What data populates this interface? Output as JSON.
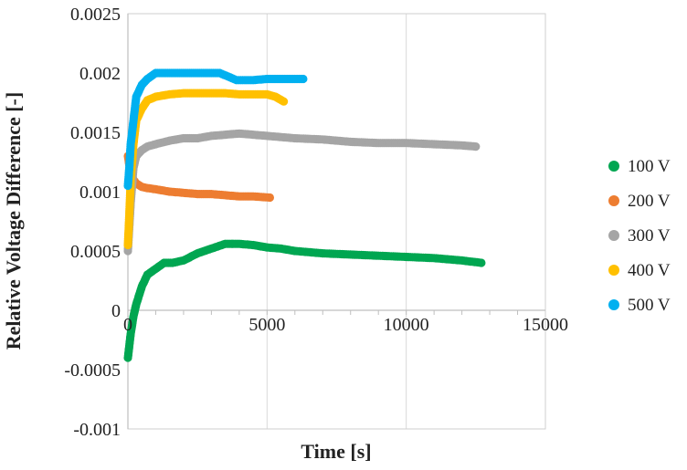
{
  "chart_data": {
    "type": "scatter",
    "title": "",
    "xlabel": "Time [s]",
    "ylabel": "Relative Voltage Difference [-]",
    "xlim": [
      0,
      15000
    ],
    "ylim": [
      -0.001,
      0.0025
    ],
    "x_ticks": [
      "0",
      "5000",
      "10000",
      "15000"
    ],
    "y_ticks": [
      "-0.001",
      "-0.0005",
      "0",
      "0.0005",
      "0.001",
      "0.0015",
      "0.002",
      "0.0025"
    ],
    "x_tick_values": [
      0,
      5000,
      10000,
      15000
    ],
    "y_tick_values": [
      -0.001,
      -0.0005,
      0,
      0.0005,
      0.001,
      0.0015,
      0.002,
      0.0025
    ],
    "legend_position": "right",
    "grid": "vertical",
    "series": [
      {
        "name": "100 V",
        "color": "#00a651",
        "x": [
          0,
          50,
          100,
          200,
          300,
          500,
          700,
          1000,
          1300,
          1600,
          2000,
          2500,
          3000,
          3500,
          4000,
          4500,
          5000,
          5500,
          6000,
          7000,
          8000,
          9000,
          10000,
          11000,
          12000,
          12700
        ],
        "y": [
          -0.0004,
          -0.0003,
          -0.0002,
          -5e-05,
          5e-05,
          0.0002,
          0.0003,
          0.00035,
          0.0004,
          0.0004,
          0.00042,
          0.00048,
          0.00052,
          0.00056,
          0.00056,
          0.00055,
          0.00053,
          0.00052,
          0.0005,
          0.00048,
          0.00047,
          0.00046,
          0.00045,
          0.00044,
          0.00042,
          0.0004
        ]
      },
      {
        "name": "200 V",
        "color": "#ed7d31",
        "x": [
          0,
          100,
          200,
          300,
          500,
          700,
          1000,
          1500,
          2000,
          2500,
          3000,
          3500,
          4000,
          4500,
          5100
        ],
        "y": [
          0.0013,
          0.00115,
          0.0011,
          0.00107,
          0.00104,
          0.00103,
          0.00102,
          0.001,
          0.00099,
          0.00098,
          0.00098,
          0.00097,
          0.00096,
          0.00096,
          0.00095
        ]
      },
      {
        "name": "300 V",
        "color": "#a5a5a5",
        "x": [
          0,
          50,
          100,
          200,
          300,
          500,
          700,
          1000,
          1500,
          2000,
          2500,
          3000,
          3500,
          4000,
          4500,
          5000,
          6000,
          7000,
          8000,
          9000,
          10000,
          11000,
          12000,
          12500
        ],
        "y": [
          0.0005,
          0.0007,
          0.0009,
          0.0012,
          0.0013,
          0.00135,
          0.00138,
          0.0014,
          0.00143,
          0.00145,
          0.00145,
          0.00147,
          0.00148,
          0.00149,
          0.00148,
          0.00147,
          0.00145,
          0.00144,
          0.00142,
          0.00141,
          0.00141,
          0.0014,
          0.00139,
          0.00138
        ]
      },
      {
        "name": "400 V",
        "color": "#ffc000",
        "x": [
          0,
          50,
          100,
          200,
          300,
          500,
          700,
          1000,
          1500,
          2000,
          2500,
          3000,
          3500,
          4000,
          4500,
          5000,
          5300,
          5600
        ],
        "y": [
          0.00055,
          0.0008,
          0.0011,
          0.0014,
          0.0016,
          0.0017,
          0.00177,
          0.0018,
          0.00182,
          0.00183,
          0.00183,
          0.00183,
          0.00183,
          0.00182,
          0.00182,
          0.00182,
          0.0018,
          0.00176
        ]
      },
      {
        "name": "500 V",
        "color": "#00b0f0",
        "x": [
          0,
          50,
          100,
          200,
          300,
          500,
          700,
          1000,
          1500,
          2000,
          2500,
          3000,
          3300,
          3600,
          3900,
          4200,
          4500,
          5000,
          5500,
          6000,
          6300
        ],
        "y": [
          0.00105,
          0.0012,
          0.0014,
          0.0016,
          0.0018,
          0.0019,
          0.00195,
          0.002,
          0.002,
          0.002,
          0.002,
          0.002,
          0.002,
          0.00197,
          0.00194,
          0.00194,
          0.00194,
          0.00195,
          0.00195,
          0.00195,
          0.00195
        ]
      }
    ]
  }
}
